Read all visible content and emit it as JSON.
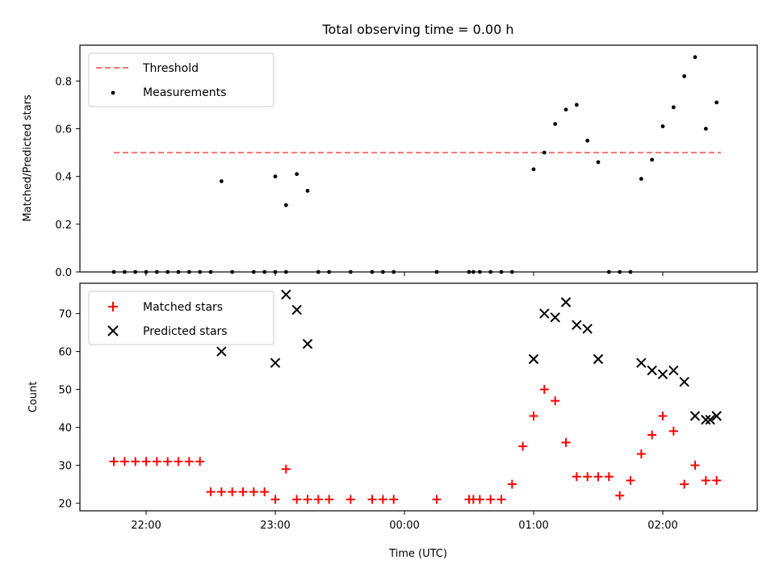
{
  "chart_data": [
    {
      "type": "scatter",
      "title": "Total observing time = 0.00 h",
      "ylabel": "Matched/Predicted stars",
      "ylim": [
        0,
        0.95
      ],
      "yticks": [
        "0.0",
        "0.2",
        "0.4",
        "0.6",
        "0.8"
      ],
      "ytick_values": [
        0,
        0.2,
        0.4,
        0.6,
        0.8
      ],
      "legend_position": "upper-left",
      "threshold": {
        "name": "Threshold",
        "value": 0.5,
        "color": "#ff7070",
        "x_start": "21:45",
        "x_end": "02:27"
      },
      "series": [
        {
          "name": "Measurements",
          "color": "#000000",
          "x": [
            "21:45",
            "21:50",
            "21:55",
            "22:00",
            "22:05",
            "22:10",
            "22:15",
            "22:20",
            "22:25",
            "22:30",
            "22:35",
            "22:40",
            "22:50",
            "22:55",
            "23:00",
            "23:05",
            "23:00",
            "23:05",
            "23:10",
            "23:15",
            "23:20",
            "23:25",
            "23:35",
            "23:45",
            "23:50",
            "23:55",
            "00:15",
            "00:30",
            "00:32",
            "00:35",
            "00:40",
            "00:45",
            "00:50",
            "01:00",
            "01:05",
            "01:10",
            "01:15",
            "01:20",
            "01:25",
            "01:30",
            "01:35",
            "01:40",
            "01:45",
            "01:50",
            "01:55",
            "02:00",
            "02:05",
            "02:10",
            "02:15",
            "02:20",
            "02:25"
          ],
          "y": [
            0,
            0,
            0,
            0,
            0,
            0,
            0,
            0,
            0,
            0,
            0.38,
            0,
            0,
            0,
            0,
            0,
            0.4,
            0.28,
            0.41,
            0.34,
            0,
            0,
            0,
            0,
            0,
            0,
            0,
            0,
            0,
            0,
            0,
            0,
            0,
            0.43,
            0.5,
            0.62,
            0.68,
            0.7,
            0.55,
            0.46,
            0,
            0,
            0,
            0.39,
            0.47,
            0.61,
            0.69,
            0.82,
            0.9,
            0.6,
            0.71
          ]
        }
      ]
    },
    {
      "type": "scatter",
      "xlabel": "Time (UTC)",
      "ylabel": "Count",
      "ylim": [
        18,
        78
      ],
      "yticks": [
        "20",
        "30",
        "40",
        "50",
        "60",
        "70"
      ],
      "ytick_values": [
        20,
        30,
        40,
        50,
        60,
        70
      ],
      "xticks": [
        "22:00",
        "23:00",
        "00:00",
        "01:00",
        "02:00"
      ],
      "legend_position": "upper-left",
      "series": [
        {
          "name": "Matched stars",
          "color": "#ff0000",
          "marker": "plus",
          "x": [
            "21:45",
            "21:50",
            "21:55",
            "22:00",
            "22:05",
            "22:10",
            "22:15",
            "22:20",
            "22:25",
            "22:30",
            "22:35",
            "22:40",
            "22:45",
            "22:50",
            "22:55",
            "23:00",
            "23:05",
            "23:10",
            "23:15",
            "23:20",
            "23:25",
            "23:35",
            "23:45",
            "23:50",
            "23:55",
            "00:15",
            "00:30",
            "00:32",
            "00:35",
            "00:40",
            "00:45",
            "00:50",
            "00:55",
            "01:00",
            "01:05",
            "01:10",
            "01:15",
            "01:20",
            "01:25",
            "01:30",
            "01:35",
            "01:40",
            "01:45",
            "01:50",
            "01:55",
            "02:00",
            "02:05",
            "02:10",
            "02:15",
            "02:20",
            "02:25"
          ],
          "y": [
            31,
            31,
            31,
            31,
            31,
            31,
            31,
            31,
            31,
            23,
            23,
            23,
            23,
            23,
            23,
            21,
            29,
            21,
            21,
            21,
            21,
            21,
            21,
            21,
            21,
            21,
            21,
            21,
            21,
            21,
            21,
            25,
            35,
            43,
            50,
            47,
            36,
            27,
            27,
            27,
            27,
            22,
            26,
            33,
            38,
            43,
            39,
            25,
            30,
            26,
            26
          ]
        },
        {
          "name": "Predicted stars",
          "color": "#000000",
          "marker": "x",
          "x": [
            "22:35",
            "23:00",
            "23:05",
            "23:10",
            "23:15",
            "01:00",
            "01:05",
            "01:10",
            "01:15",
            "01:20",
            "01:25",
            "01:30",
            "01:50",
            "01:55",
            "02:00",
            "02:05",
            "02:10",
            "02:15",
            "02:20",
            "02:22",
            "02:25"
          ],
          "y": [
            60,
            57,
            75,
            71,
            62,
            58,
            70,
            69,
            73,
            67,
            66,
            58,
            57,
            55,
            54,
            55,
            52,
            43,
            42,
            42,
            43
          ]
        }
      ]
    }
  ]
}
